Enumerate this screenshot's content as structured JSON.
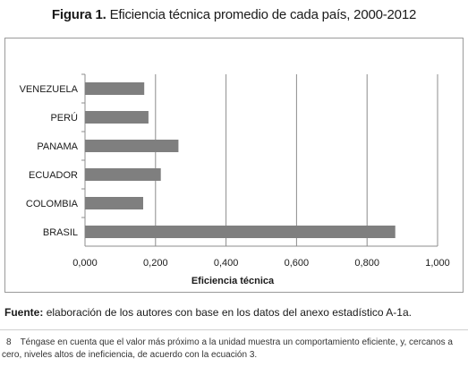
{
  "figure": {
    "title_lead": "Figura 1.",
    "title_rest": "Eficiencia técnica promedio de cada país, 2000-2012"
  },
  "source": {
    "label": "Fuente:",
    "text": "elaboración de los autores con base en los datos del anexo estadístico A-1a."
  },
  "footnote": {
    "number": "8",
    "text": "Téngase en cuenta que el valor más próximo a la unidad muestra un comportamiento eficiente, y, cercanos a cero, niveles altos de ineficiencia, de acuerdo con la ecuación 3."
  },
  "colors": {
    "bar": "#7f7f7f",
    "gridline": "#8c8c8c",
    "axis": "#8c8c8c",
    "text": "#1a1a1a"
  },
  "chart_data": {
    "type": "bar",
    "orientation": "horizontal",
    "categories": [
      "VENEZUELA",
      "PERÚ",
      "PANAMA",
      "ECUADOR",
      "COLOMBIA",
      "BRASIL"
    ],
    "values": [
      0.168,
      0.18,
      0.265,
      0.215,
      0.165,
      0.88
    ],
    "xlabel": "Eficiencia técnica",
    "ylabel": "",
    "xlim": [
      0,
      1
    ],
    "xticks": [
      0,
      0.2,
      0.4,
      0.6,
      0.8,
      1.0
    ],
    "xtick_labels": [
      "0,000",
      "0,200",
      "0,400",
      "0,600",
      "0,800",
      "1,000"
    ],
    "grid": "vertical",
    "legend": "none"
  }
}
